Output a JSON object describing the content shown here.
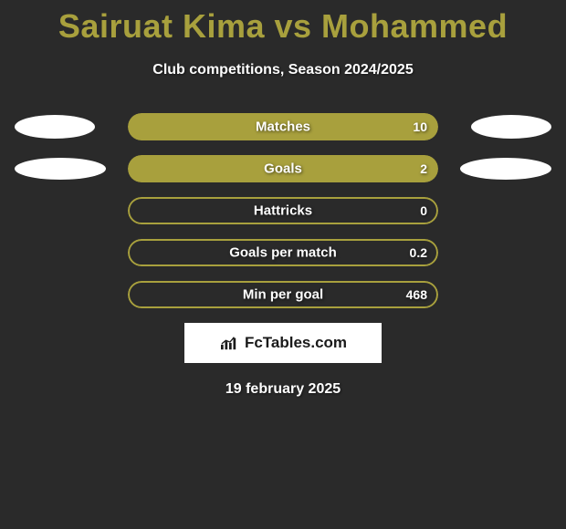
{
  "title": "Sairuat Kima vs Mohammed",
  "subtitle": "Club competitions, Season 2024/2025",
  "date": "19 february 2025",
  "logo": {
    "text": "FcTables.com"
  },
  "colors": {
    "background": "#2a2a2a",
    "title_color": "#a8a03d",
    "bar_fill": "#a8a03d",
    "bar_border": "#a8a03d",
    "ellipse": "#ffffff",
    "text": "#ffffff"
  },
  "stats": [
    {
      "label": "Matches",
      "value": "10",
      "fill_percent": 100,
      "has_ellipses": true,
      "ellipse_left_width": 88,
      "ellipse_left_height": 26,
      "ellipse_right_width": 88,
      "ellipse_right_height": 26
    },
    {
      "label": "Goals",
      "value": "2",
      "fill_percent": 100,
      "has_ellipses": true,
      "ellipse_left_width": 100,
      "ellipse_left_height": 24,
      "ellipse_right_width": 100,
      "ellipse_right_height": 24
    },
    {
      "label": "Hattricks",
      "value": "0",
      "fill_percent": 0,
      "has_ellipses": false
    },
    {
      "label": "Goals per match",
      "value": "0.2",
      "fill_percent": 0,
      "has_ellipses": false
    },
    {
      "label": "Min per goal",
      "value": "468",
      "fill_percent": 0,
      "has_ellipses": false
    }
  ]
}
